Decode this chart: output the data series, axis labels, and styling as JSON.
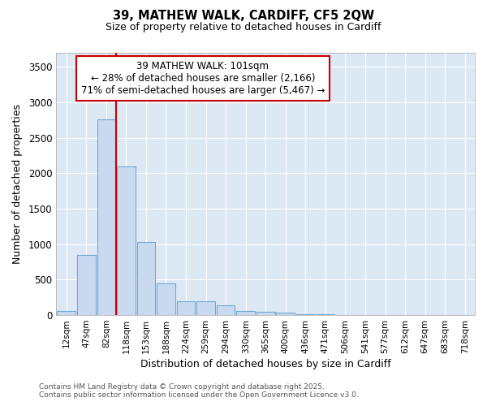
{
  "title_line1": "39, MATHEW WALK, CARDIFF, CF5 2QW",
  "title_line2": "Size of property relative to detached houses in Cardiff",
  "xlabel": "Distribution of detached houses by size in Cardiff",
  "ylabel": "Number of detached properties",
  "bar_labels": [
    "12sqm",
    "47sqm",
    "82sqm",
    "118sqm",
    "153sqm",
    "188sqm",
    "224sqm",
    "259sqm",
    "294sqm",
    "330sqm",
    "365sqm",
    "400sqm",
    "436sqm",
    "471sqm",
    "506sqm",
    "541sqm",
    "577sqm",
    "612sqm",
    "647sqm",
    "683sqm",
    "718sqm"
  ],
  "bar_values": [
    60,
    850,
    2760,
    2100,
    1030,
    450,
    200,
    195,
    140,
    60,
    50,
    35,
    15,
    10,
    5,
    3,
    3,
    2,
    2,
    2,
    2
  ],
  "bar_color": "#c9daf0",
  "bar_edge_color": "#6fa8d4",
  "vline_x_index": 3,
  "vline_color": "#cc0000",
  "annotation_text": "39 MATHEW WALK: 101sqm\n← 28% of detached houses are smaller (2,166)\n71% of semi-detached houses are larger (5,467) →",
  "annotation_box_color": "#ffffff",
  "annotation_box_edge": "#cc0000",
  "ylim": [
    0,
    3700
  ],
  "yticks": [
    0,
    500,
    1000,
    1500,
    2000,
    2500,
    3000,
    3500
  ],
  "fig_bg_color": "#ffffff",
  "plot_bg_color": "#dde8f5",
  "grid_color": "#ffffff",
  "footer_line1": "Contains HM Land Registry data © Crown copyright and database right 2025.",
  "footer_line2": "Contains public sector information licensed under the Open Government Licence v3.0."
}
